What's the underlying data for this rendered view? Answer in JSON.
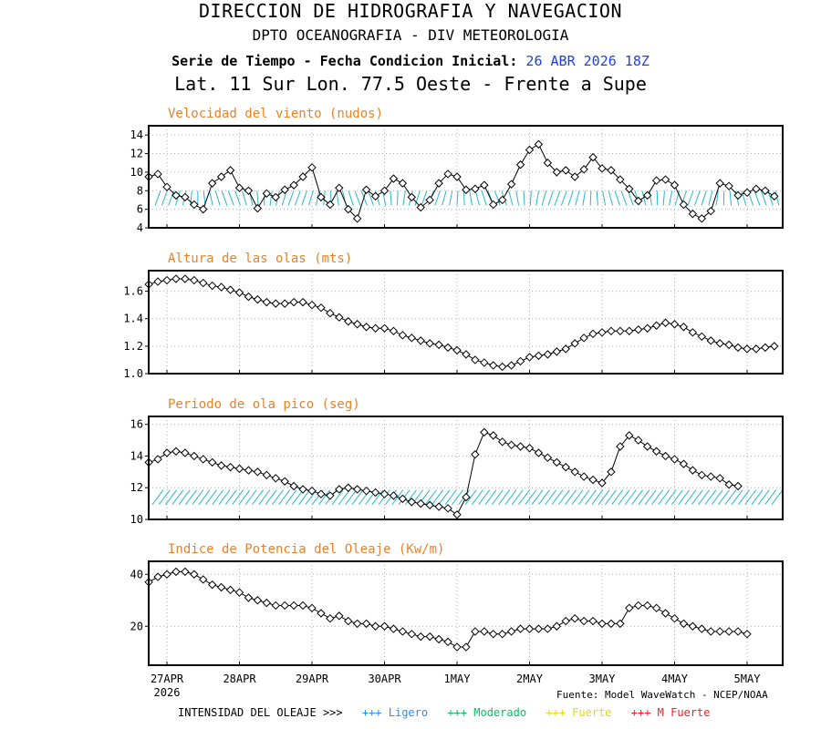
{
  "header": {
    "org": "DIRECCION DE HIDROGRAFIA Y NAVEGACION",
    "dept": "DPTO OCEANOGRAFIA - DIV METEOROLOGIA",
    "series_label": "Serie de Tiempo - Fecha Condicion Inicial:",
    "init_date": "26 ABR 2026 18Z",
    "location": "Lat. 11 Sur  Lon. 77.5 Oeste - Frente a Supe"
  },
  "source": "Fuente: Model WaveWatch - NCEP/NOAA",
  "footer": {
    "label": "INTENSIDAD DEL OLEAJE >>>",
    "items": [
      {
        "text": "+++ Ligero",
        "color": "#1e90ff"
      },
      {
        "text": "+++ Moderado",
        "color": "#00c060"
      },
      {
        "text": "+++ Fuerte",
        "color": "#e6d800"
      },
      {
        "text": "+++ M Fuerte",
        "color": "#ff1a1a"
      }
    ]
  },
  "colors": {
    "title": "#e8822a",
    "arrows": "#29b8c8",
    "line": "#000000",
    "grid": "#b0b0b0"
  },
  "chart_data": [
    {
      "type": "line",
      "title": "Velocidad del viento (nudos)",
      "x_start_hours": 0,
      "x_step_hours": 3,
      "ylim": [
        4,
        15
      ],
      "yticks": [
        4,
        6,
        8,
        10,
        12,
        14
      ],
      "arrows": true,
      "arrow_level": 7.2,
      "values": [
        9.5,
        9.8,
        8.4,
        7.5,
        7.3,
        6.5,
        6.0,
        8.8,
        9.5,
        10.2,
        8.3,
        8.0,
        6.1,
        7.7,
        7.3,
        8.1,
        8.6,
        9.5,
        10.5,
        7.3,
        6.5,
        8.3,
        6.0,
        5.0,
        8.1,
        7.4,
        8.0,
        9.3,
        8.8,
        7.3,
        6.2,
        7.0,
        8.8,
        9.8,
        9.5,
        8.1,
        8.2,
        8.6,
        6.5,
        7.0,
        8.7,
        10.8,
        12.4,
        13.0,
        11.0,
        10.0,
        10.2,
        9.5,
        10.3,
        11.6,
        10.4,
        10.2,
        9.2,
        8.2,
        6.9,
        7.5,
        9.1,
        9.2,
        8.6,
        6.5,
        5.5,
        5.0,
        5.8,
        8.8,
        8.5,
        7.5,
        7.8,
        8.2,
        8.0,
        7.4
      ]
    },
    {
      "type": "line",
      "title": "Altura de las olas (mts)",
      "x_start_hours": 0,
      "x_step_hours": 3,
      "ylim": [
        1.0,
        1.75
      ],
      "yticks": [
        1.0,
        1.2,
        1.4,
        1.6
      ],
      "ytick_decimals": 1,
      "arrows": false,
      "values": [
        1.65,
        1.67,
        1.68,
        1.69,
        1.69,
        1.68,
        1.66,
        1.64,
        1.63,
        1.61,
        1.59,
        1.56,
        1.54,
        1.52,
        1.51,
        1.51,
        1.52,
        1.52,
        1.5,
        1.48,
        1.44,
        1.41,
        1.38,
        1.36,
        1.34,
        1.33,
        1.33,
        1.31,
        1.28,
        1.26,
        1.24,
        1.22,
        1.21,
        1.19,
        1.17,
        1.14,
        1.1,
        1.08,
        1.06,
        1.05,
        1.06,
        1.09,
        1.12,
        1.13,
        1.14,
        1.16,
        1.18,
        1.22,
        1.26,
        1.29,
        1.3,
        1.31,
        1.31,
        1.31,
        1.32,
        1.33,
        1.35,
        1.37,
        1.36,
        1.34,
        1.3,
        1.27,
        1.24,
        1.22,
        1.21,
        1.19,
        1.18,
        1.18,
        1.19,
        1.2
      ]
    },
    {
      "type": "line",
      "title": "Periodo de ola pico (seg)",
      "x_start_hours": 0,
      "x_step_hours": 3,
      "ylim": [
        10,
        16.5
      ],
      "yticks": [
        10,
        12,
        14,
        16
      ],
      "arrows": true,
      "arrow_level": 11.4,
      "values": [
        13.6,
        13.8,
        14.2,
        14.3,
        14.2,
        14.0,
        13.8,
        13.6,
        13.4,
        13.3,
        13.2,
        13.1,
        13.0,
        12.8,
        12.6,
        12.4,
        12.1,
        11.9,
        11.8,
        11.6,
        11.5,
        11.9,
        12.0,
        11.9,
        11.8,
        11.7,
        11.6,
        11.5,
        11.3,
        11.1,
        11.0,
        10.9,
        10.8,
        10.7,
        10.3,
        11.4,
        14.1,
        15.5,
        15.3,
        14.9,
        14.7,
        14.6,
        14.5,
        14.2,
        13.9,
        13.6,
        13.3,
        13.0,
        12.7,
        12.5,
        12.3,
        13.0,
        14.6,
        15.3,
        15.0,
        14.6,
        14.3,
        14.0,
        13.8,
        13.5,
        13.1,
        12.8,
        12.7,
        12.6,
        12.2,
        12.1
      ]
    },
    {
      "type": "line",
      "title": "Indice de Potencia del Oleaje (Kw/m)",
      "x_start_hours": 0,
      "x_step_hours": 3,
      "ylim": [
        5,
        45
      ],
      "yticks": [
        20,
        40
      ],
      "arrows": false,
      "values": [
        37,
        39,
        40,
        41,
        41,
        40,
        38,
        36,
        35,
        34,
        33,
        31,
        30,
        29,
        28,
        28,
        28,
        28,
        27,
        25,
        23,
        24,
        22,
        21,
        21,
        20,
        20,
        19,
        18,
        17,
        16,
        16,
        15,
        14,
        12,
        12,
        18,
        18,
        17,
        17,
        18,
        19,
        19,
        19,
        19,
        20,
        22,
        23,
        22,
        22,
        21,
        21,
        21,
        27,
        28,
        28,
        27,
        25,
        23,
        21,
        20,
        19,
        18,
        18,
        18,
        18,
        17
      ]
    }
  ],
  "xaxis": {
    "labels": [
      "27APR",
      "28APR",
      "29APR",
      "30APR",
      "1MAY",
      "2MAY",
      "3MAY",
      "4MAY",
      "5MAY"
    ],
    "year": "2026"
  }
}
